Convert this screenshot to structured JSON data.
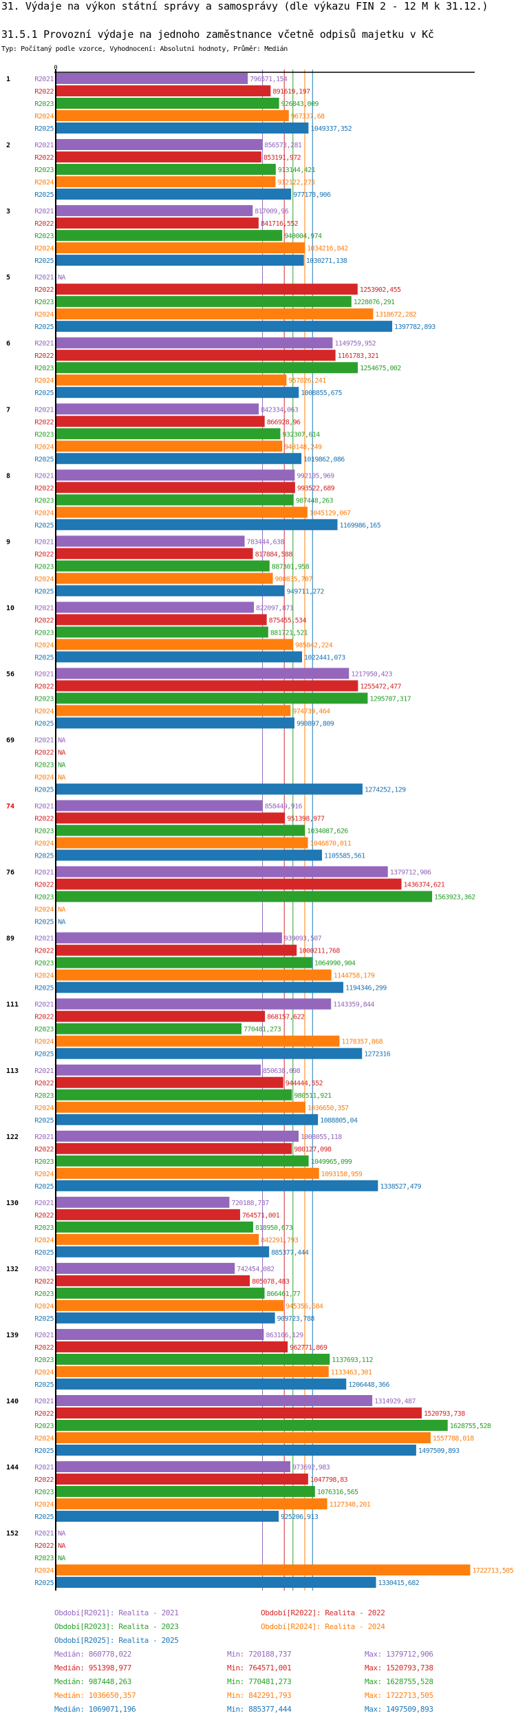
{
  "header": {
    "title": "31. Výdaje na výkon státní správy a samosprávy (dle výkazu FIN 2 - 12 M k 31.12.)",
    "subtitle": "31.5.1 Provozní výdaje na jednoho zaměstnance včetně odpisů majetku v Kč",
    "meta": "Typ: Počítaný podle vzorce, Vyhodnocení: Absolutní hodnoty, Průměr: Medián"
  },
  "chart_data": {
    "type": "bar",
    "orientation": "horizontal",
    "title": "31.5.1 Provozní výdaje na jednoho zaměstnance včetně odpisů majetku v Kč",
    "xlabel": "",
    "ylabel": "",
    "x_tick_labels": [
      "0"
    ],
    "xlim": [
      0,
      1722713.505
    ],
    "grid": false,
    "legend_position": "bottom",
    "series_names": [
      "R2021",
      "R2022",
      "R2023",
      "R2024",
      "R2025"
    ],
    "colors": {
      "R2021": "#9467bd",
      "R2022": "#d62728",
      "R2023": "#2ca02c",
      "R2024": "#ff7f0e",
      "R2025": "#1f77b4"
    },
    "groups": [
      {
        "label": "1",
        "highlight": false,
        "values": [
          "796571,154",
          "891619,197",
          "926843,009",
          "967337,68",
          "1049337,352"
        ]
      },
      {
        "label": "2",
        "highlight": false,
        "values": [
          "856573,281",
          "853191,972",
          "913144,421",
          "912122,275",
          "977178,906"
        ]
      },
      {
        "label": "3",
        "highlight": false,
        "values": [
          "817009,96",
          "841716,552",
          "940004,974",
          "1034216,842",
          "1030271,138"
        ]
      },
      {
        "label": "5",
        "highlight": false,
        "values": [
          "NA",
          "1253902,455",
          "1228076,291",
          "1318672,282",
          "1397782,893"
        ]
      },
      {
        "label": "6",
        "highlight": false,
        "values": [
          "1149759,952",
          "1161783,321",
          "1254675,002",
          "957826,241",
          "1008855,675"
        ]
      },
      {
        "label": "7",
        "highlight": false,
        "values": [
          "842334,063",
          "866928,96",
          "932307,614",
          "940148,249",
          "1019862,086"
        ]
      },
      {
        "label": "8",
        "highlight": false,
        "values": [
          "992105,969",
          "993522,689",
          "987448,263",
          "1045129,067",
          "1169986,165"
        ]
      },
      {
        "label": "9",
        "highlight": false,
        "values": [
          "783444,638",
          "817884,588",
          "887301,958",
          "900835,707",
          "949711,272"
        ]
      },
      {
        "label": "10",
        "highlight": false,
        "values": [
          "822097,871",
          "875455,534",
          "881721,521",
          "985042,224",
          "1022441,073"
        ]
      },
      {
        "label": "56",
        "highlight": false,
        "values": [
          "1217950,423",
          "1255472,477",
          "1295707,317",
          "974739,464",
          "990897,809"
        ]
      },
      {
        "label": "69",
        "highlight": false,
        "values": [
          "NA",
          "NA",
          "NA",
          "NA",
          "1274252,129"
        ]
      },
      {
        "label": "74",
        "highlight": true,
        "values": [
          "858449,916",
          "951398,977",
          "1034087,626",
          "1046870,011",
          "1105585,561"
        ]
      },
      {
        "label": "76",
        "highlight": false,
        "values": [
          "1379712,906",
          "1436374,621",
          "1563923,362",
          "NA",
          "NA"
        ]
      },
      {
        "label": "89",
        "highlight": false,
        "values": [
          "939093,507",
          "1000211,768",
          "1064990,904",
          "1144758,179",
          "1194346,299"
        ]
      },
      {
        "label": "111",
        "highlight": false,
        "values": [
          "1143359,844",
          "868157,622",
          "770481,273",
          "1178357,868",
          "1272316"
        ]
      },
      {
        "label": "113",
        "highlight": false,
        "values": [
          "850638,098",
          "944444,552",
          "980511,921",
          "1036650,357",
          "1088805,04"
        ]
      },
      {
        "label": "122",
        "highlight": false,
        "values": [
          "1008055,118",
          "980127,098",
          "1049965,099",
          "1093158,959",
          "1338527,479"
        ]
      },
      {
        "label": "130",
        "highlight": false,
        "values": [
          "720188,737",
          "764571,001",
          "818950,673",
          "842291,793",
          "885377,444"
        ]
      },
      {
        "label": "132",
        "highlight": false,
        "values": [
          "742454,082",
          "805078,483",
          "866461,77",
          "945356,684",
          "909723,788"
        ]
      },
      {
        "label": "139",
        "highlight": false,
        "values": [
          "863106,129",
          "962771,869",
          "1137693,112",
          "1133463,301",
          "1206448,366"
        ]
      },
      {
        "label": "140",
        "highlight": false,
        "values": [
          "1314929,487",
          "1520793,738",
          "1628755,528",
          "1557788,018",
          "1497509,893"
        ]
      },
      {
        "label": "144",
        "highlight": false,
        "values": [
          "973692,983",
          "1047798,83",
          "1076316,565",
          "1127348,201",
          "925206,913"
        ]
      },
      {
        "label": "152",
        "highlight": false,
        "values": [
          "NA",
          "NA",
          "NA",
          "1722713,505",
          "1330415,682"
        ]
      }
    ],
    "medians": {
      "R2021": 860778.022,
      "R2022": 951398.977,
      "R2023": 987448.263,
      "R2024": 1036650.357,
      "R2025": 1069071.196
    },
    "legend": [
      {
        "series": "R2021",
        "text": "Období[R2021]: Realita - 2021"
      },
      {
        "series": "R2022",
        "text": "Období[R2022]: Realita - 2022"
      },
      {
        "series": "R2023",
        "text": "Období[R2023]: Realita - 2023"
      },
      {
        "series": "R2024",
        "text": "Období[R2024]: Realita - 2024"
      },
      {
        "series": "R2025",
        "text": "Období[R2025]: Realita - 2025"
      }
    ],
    "stats": [
      {
        "series": "R2021",
        "median": "Medián: 860778,022",
        "min": "Min: 720188,737",
        "max": "Max: 1379712,906"
      },
      {
        "series": "R2022",
        "median": "Medián: 951398,977",
        "min": "Min: 764571,001",
        "max": "Max: 1520793,738"
      },
      {
        "series": "R2023",
        "median": "Medián: 987448,263",
        "min": "Min: 770481,273",
        "max": "Max: 1628755,528"
      },
      {
        "series": "R2024",
        "median": "Medián: 1036650,357",
        "min": "Min: 842291,793",
        "max": "Max: 1722713,505"
      },
      {
        "series": "R2025",
        "median": "Medián: 1069071,196",
        "min": "Min: 885377,444",
        "max": "Max: 1497509,893"
      }
    ]
  }
}
